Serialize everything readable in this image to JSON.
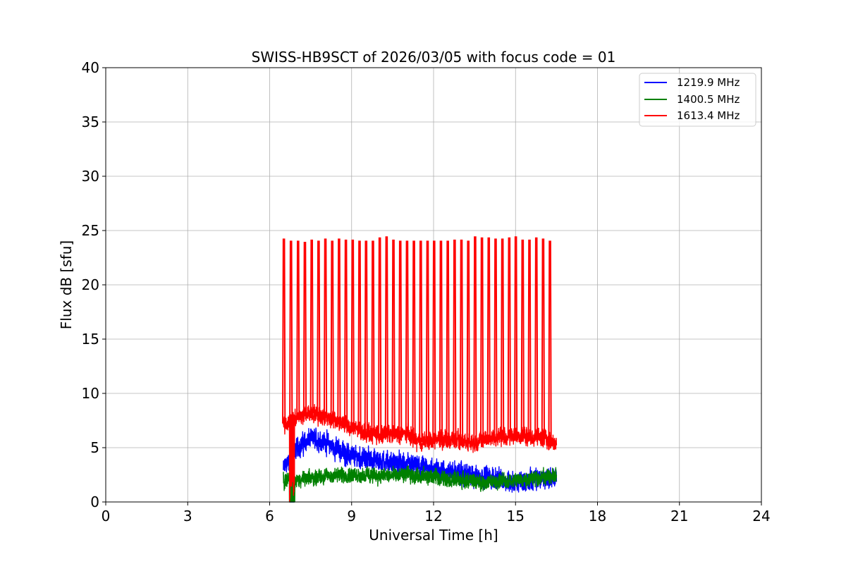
{
  "chart_data": {
    "type": "line",
    "title": "SWISS-HB9SCT of 2026/03/05 with focus code = 01",
    "xlabel": "Universal Time [h]",
    "ylabel": "Flux dB [sfu]",
    "xlim": [
      0,
      24
    ],
    "ylim": [
      0,
      40
    ],
    "x_ticks": [
      0,
      3,
      6,
      9,
      12,
      15,
      18,
      21,
      24
    ],
    "y_ticks": [
      0,
      5,
      10,
      15,
      20,
      25,
      30,
      35,
      40
    ],
    "x_tick_labels": [
      "0",
      "3",
      "6",
      "9",
      "12",
      "15",
      "18",
      "21",
      "24"
    ],
    "y_tick_labels": [
      "0",
      "5",
      "10",
      "15",
      "20",
      "25",
      "30",
      "35",
      "40"
    ],
    "grid": true,
    "legend_position": "top-right",
    "data_time_range": [
      6.5,
      16.5
    ],
    "series": [
      {
        "name": "1219.9 MHz",
        "color": "#0000ff",
        "baseline": [
          [
            6.5,
            3.0
          ],
          [
            7.0,
            5.0
          ],
          [
            7.5,
            5.8
          ],
          [
            8.0,
            5.6
          ],
          [
            8.5,
            4.8
          ],
          [
            9.0,
            4.2
          ],
          [
            9.5,
            4.0
          ],
          [
            10.0,
            3.8
          ],
          [
            10.5,
            3.6
          ],
          [
            11.0,
            3.4
          ],
          [
            11.5,
            3.2
          ],
          [
            12.0,
            3.0
          ],
          [
            12.5,
            2.8
          ],
          [
            13.0,
            2.6
          ],
          [
            13.5,
            2.4
          ],
          [
            14.0,
            2.3
          ],
          [
            14.5,
            2.0
          ],
          [
            15.0,
            1.8
          ],
          [
            15.5,
            2.0
          ],
          [
            16.0,
            2.2
          ],
          [
            16.5,
            2.2
          ]
        ],
        "noise_amplitude": 1.1,
        "spike_times": [],
        "spike_peaks": []
      },
      {
        "name": "1400.5 MHz",
        "color": "#008000",
        "baseline": [
          [
            6.5,
            2.0
          ],
          [
            7.0,
            2.0
          ],
          [
            8.0,
            2.4
          ],
          [
            9.0,
            2.5
          ],
          [
            10.0,
            2.4
          ],
          [
            11.0,
            2.5
          ],
          [
            12.0,
            2.3
          ],
          [
            13.0,
            2.0
          ],
          [
            14.0,
            1.8
          ],
          [
            15.0,
            2.0
          ],
          [
            16.0,
            2.3
          ],
          [
            16.5,
            2.3
          ]
        ],
        "noise_amplitude": 0.8,
        "spike_times": [],
        "spike_peaks": []
      },
      {
        "name": "1613.4 MHz",
        "color": "#ff0000",
        "baseline": [
          [
            6.5,
            7.2
          ],
          [
            7.0,
            7.8
          ],
          [
            7.5,
            8.2
          ],
          [
            8.0,
            7.9
          ],
          [
            8.5,
            7.4
          ],
          [
            9.0,
            6.8
          ],
          [
            9.5,
            6.4
          ],
          [
            10.0,
            6.2
          ],
          [
            10.5,
            6.2
          ],
          [
            11.0,
            6.3
          ],
          [
            11.5,
            5.5
          ],
          [
            12.0,
            5.7
          ],
          [
            12.5,
            5.8
          ],
          [
            13.0,
            5.6
          ],
          [
            13.5,
            5.5
          ],
          [
            14.0,
            5.9
          ],
          [
            14.5,
            6.0
          ],
          [
            15.0,
            6.1
          ],
          [
            15.5,
            6.0
          ],
          [
            16.0,
            5.9
          ],
          [
            16.5,
            5.3
          ]
        ],
        "noise_amplitude": 0.9,
        "spike_times": [
          6.52,
          6.78,
          7.04,
          7.29,
          7.54,
          7.79,
          8.04,
          8.29,
          8.54,
          8.79,
          9.04,
          9.29,
          9.53,
          9.78,
          10.03,
          10.28,
          10.53,
          10.78,
          11.03,
          11.28,
          11.53,
          11.78,
          12.02,
          12.27,
          12.52,
          12.77,
          13.02,
          13.27,
          13.52,
          13.77,
          14.02,
          14.27,
          14.52,
          14.77,
          15.01,
          15.26,
          15.51,
          15.76,
          16.01,
          16.26
        ],
        "spike_peaks": [
          24.2,
          24.0,
          24.0,
          23.9,
          24.1,
          24.0,
          24.2,
          24.0,
          24.2,
          24.1,
          24.1,
          24.0,
          24.0,
          24.0,
          24.3,
          24.4,
          24.1,
          24.0,
          24.0,
          24.0,
          24.0,
          24.0,
          24.0,
          24.0,
          24.0,
          24.1,
          24.1,
          24.0,
          24.4,
          24.3,
          24.3,
          24.2,
          24.2,
          24.3,
          24.4,
          24.1,
          24.1,
          24.3,
          24.2,
          24.0
        ]
      }
    ]
  }
}
